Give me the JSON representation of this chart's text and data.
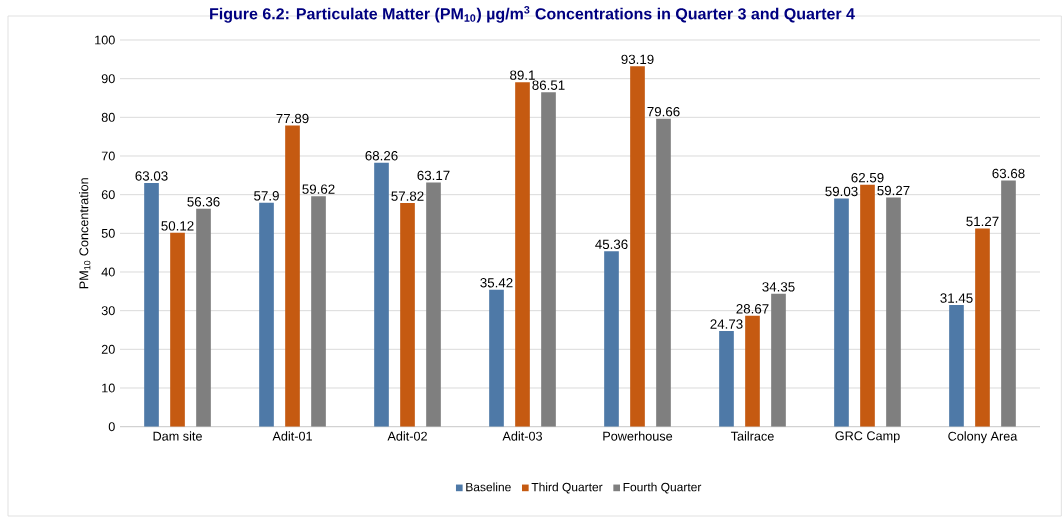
{
  "chart_data": {
    "type": "bar",
    "title": "Figure 6.2: Particulate Matter (PM$_{10}$) µg/m$^{3}$ Concentrations in Quarter 3 and Quarter 4",
    "ylabel": "PM$_{10}$ Concentration",
    "categories": [
      "Dam site",
      "Adit-01",
      "Adit-02",
      "Adit-03",
      "Powerhouse",
      "Tailrace",
      "GRC Camp",
      "Colony Area"
    ],
    "series": [
      {
        "name": "Baseline",
        "color": "#4e79a7",
        "values": [
          63.03,
          57.9,
          68.26,
          35.42,
          45.36,
          24.73,
          59.03,
          31.45
        ]
      },
      {
        "name": "Third Quarter",
        "color": "#c55a11",
        "values": [
          50.12,
          77.89,
          57.82,
          89.1,
          93.19,
          28.67,
          62.59,
          51.27
        ]
      },
      {
        "name": "Fourth Quarter",
        "color": "#7f7f7f",
        "values": [
          56.36,
          59.62,
          63.17,
          86.51,
          79.66,
          34.35,
          59.27,
          63.68
        ]
      }
    ],
    "ylim": [
      0,
      100
    ],
    "yticks": [
      0,
      10,
      20,
      30,
      40,
      50,
      60,
      70,
      80,
      90,
      100
    ],
    "grid": "y",
    "legend": "bottom",
    "data_labels": true
  }
}
